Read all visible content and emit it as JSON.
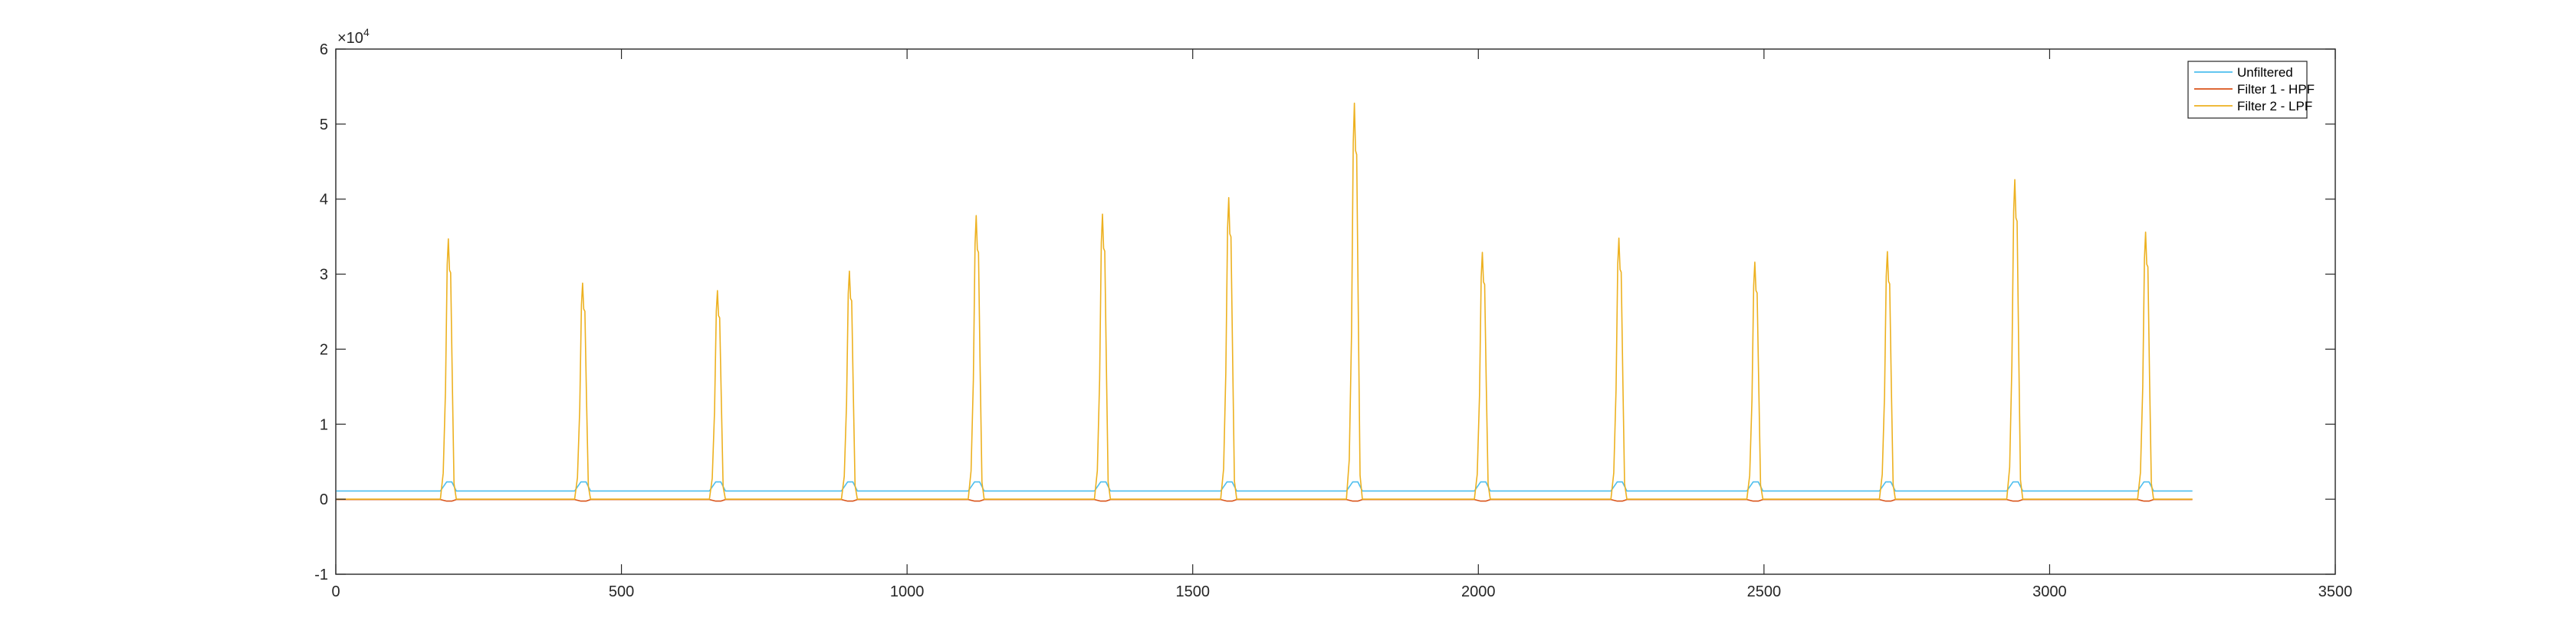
{
  "chart_data": {
    "type": "line",
    "title": "",
    "xlabel": "",
    "ylabel": "",
    "xlim": [
      0,
      3500
    ],
    "ylim": [
      -1,
      6
    ],
    "y_exponent_label": "×10",
    "y_exponent_power": "4",
    "x_ticks": [
      0,
      500,
      1000,
      1500,
      2000,
      2500,
      3000,
      3500
    ],
    "x_tick_labels": [
      "0",
      "500",
      "1000",
      "1500",
      "2000",
      "2500",
      "3000",
      "3500"
    ],
    "y_ticks": [
      -1,
      0,
      1,
      2,
      3,
      4,
      5,
      6
    ],
    "y_tick_labels": [
      "-1",
      "0",
      "1",
      "2",
      "3",
      "4",
      "5",
      "6"
    ],
    "grid": false,
    "legend_position": "top-right",
    "x_range": [
      1,
      3250
    ],
    "peak_half_width": 14,
    "series": [
      {
        "name": "Unfiltered",
        "color": "#4DBEEE",
        "kind": "baseline",
        "values": [
          0.11,
          0.11
        ]
      },
      {
        "name": "Filter 1 - HPF",
        "color": "#D95319",
        "kind": "baseline",
        "values": [
          -0.005,
          -0.005
        ]
      },
      {
        "name": "Filter 2 - LPF",
        "color": "#EDB120",
        "kind": "peaks",
        "baseline": 0.0,
        "peaks": [
          {
            "x": 197,
            "y": 3.47
          },
          {
            "x": 432,
            "y": 2.88
          },
          {
            "x": 668,
            "y": 2.78
          },
          {
            "x": 899,
            "y": 3.04
          },
          {
            "x": 1121,
            "y": 3.78
          },
          {
            "x": 1342,
            "y": 3.8
          },
          {
            "x": 1563,
            "y": 4.02
          },
          {
            "x": 1783,
            "y": 5.28
          },
          {
            "x": 2007,
            "y": 3.29
          },
          {
            "x": 2246,
            "y": 3.48
          },
          {
            "x": 2484,
            "y": 3.16
          },
          {
            "x": 2716,
            "y": 3.3
          },
          {
            "x": 2939,
            "y": 4.26
          },
          {
            "x": 3168,
            "y": 3.56
          }
        ]
      }
    ]
  }
}
